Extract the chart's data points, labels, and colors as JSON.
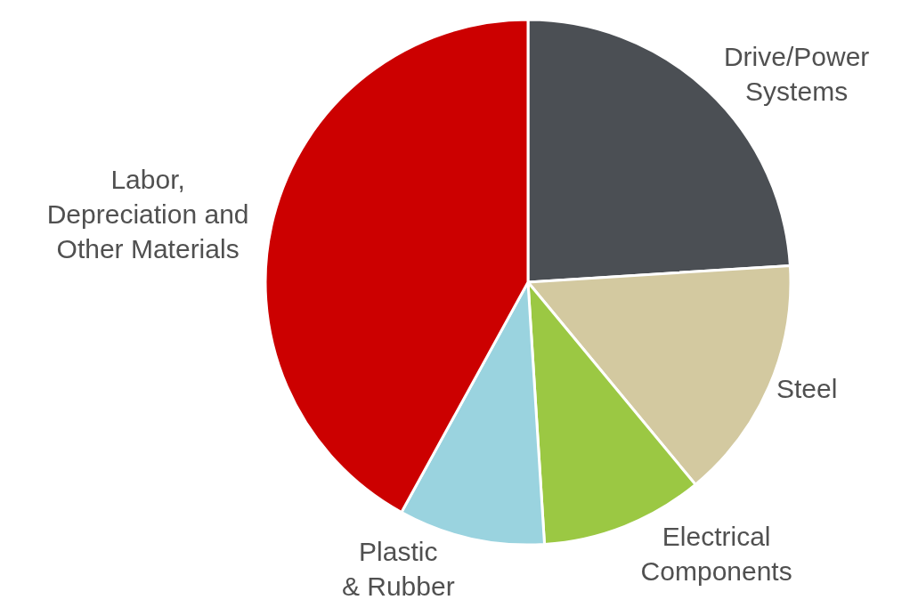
{
  "chart_data": {
    "type": "pie",
    "categories": [
      "Drive/Power\nSystems",
      "Steel",
      "Electrical\nComponents",
      "Plastic\n& Rubber",
      "Labor,\nDepreciation and\nOther Materials"
    ],
    "values": [
      24,
      15,
      10,
      9,
      42
    ],
    "colors": [
      "#4b4f54",
      "#d3c9a0",
      "#9bc843",
      "#9ad3df",
      "#cc0000"
    ],
    "legend": false
  }
}
